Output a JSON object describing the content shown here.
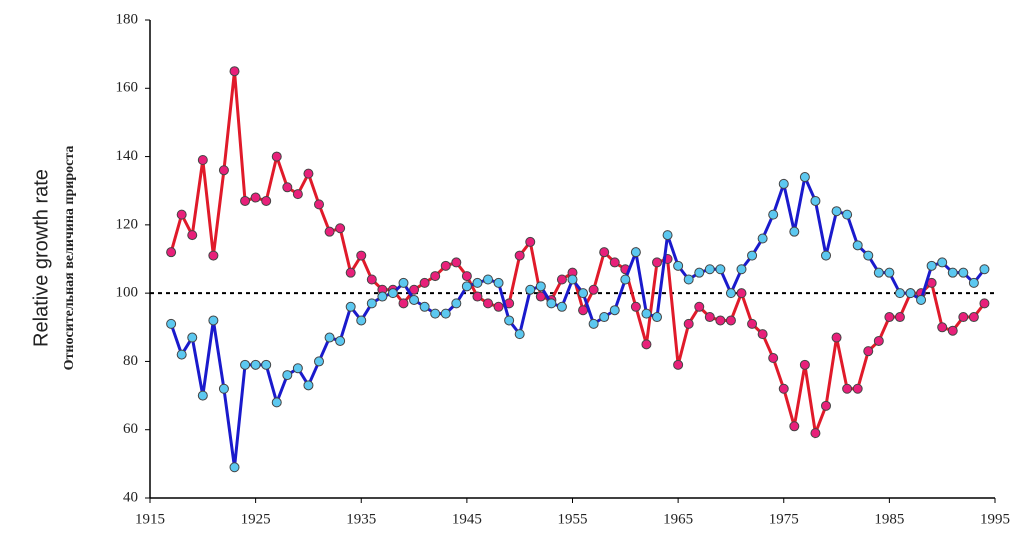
{
  "chart_data": {
    "type": "line",
    "ylabel": "Relative growth rate",
    "ylabel2": "Относительная величина прироста",
    "x": [
      1917,
      1918,
      1919,
      1920,
      1921,
      1922,
      1923,
      1924,
      1925,
      1926,
      1927,
      1928,
      1929,
      1930,
      1931,
      1932,
      1933,
      1934,
      1935,
      1936,
      1937,
      1938,
      1939,
      1940,
      1941,
      1942,
      1943,
      1944,
      1945,
      1946,
      1947,
      1948,
      1949,
      1950,
      1951,
      1952,
      1953,
      1954,
      1955,
      1956,
      1957,
      1958,
      1959,
      1960,
      1961,
      1962,
      1963,
      1964,
      1965,
      1966,
      1967,
      1968,
      1969,
      1970,
      1971,
      1972,
      1973,
      1974,
      1975,
      1976,
      1977,
      1978,
      1979,
      1980,
      1981,
      1982,
      1983,
      1984,
      1985,
      1986,
      1987,
      1988,
      1989,
      1990,
      1991,
      1992,
      1993,
      1994
    ],
    "series": [
      {
        "color": "#e01a2a",
        "marker_color": "#e8207a",
        "values": [
          112,
          123,
          117,
          139,
          111,
          136,
          165,
          127,
          128,
          127,
          140,
          131,
          129,
          135,
          126,
          118,
          119,
          106,
          111,
          104,
          101,
          101,
          97,
          101,
          103,
          105,
          108,
          109,
          105,
          99,
          97,
          96,
          97,
          111,
          115,
          99,
          98,
          104,
          106,
          95,
          101,
          112,
          109,
          107,
          96,
          85,
          109,
          110,
          79,
          91,
          96,
          93,
          92,
          92,
          100,
          91,
          88,
          81,
          72,
          61,
          79,
          59,
          67,
          87,
          72,
          72,
          83,
          86,
          93,
          93,
          100,
          100,
          103,
          90,
          89,
          93,
          93,
          97
        ]
      },
      {
        "color": "#1a1acc",
        "marker_color": "#5cc8f0",
        "values": [
          91,
          82,
          87,
          70,
          92,
          72,
          49,
          79,
          79,
          79,
          68,
          76,
          78,
          73,
          80,
          87,
          86,
          96,
          92,
          97,
          99,
          100,
          103,
          98,
          96,
          94,
          94,
          97,
          102,
          103,
          104,
          103,
          92,
          88,
          101,
          102,
          97,
          96,
          104,
          100,
          91,
          93,
          95,
          104,
          112,
          94,
          93,
          117,
          108,
          104,
          106,
          107,
          107,
          100,
          107,
          111,
          116,
          123,
          132,
          118,
          134,
          127,
          111,
          124,
          123,
          114,
          111,
          106,
          106,
          100,
          100,
          98,
          108,
          109,
          106,
          106,
          103,
          107
        ]
      }
    ],
    "hline": 100,
    "xlim": [
      1915,
      1995
    ],
    "xticks": [
      1915,
      1925,
      1935,
      1945,
      1955,
      1965,
      1975,
      1985,
      1995
    ],
    "ylim": [
      40,
      180
    ],
    "yticks": [
      40,
      60,
      80,
      100,
      120,
      140,
      160,
      180
    ]
  }
}
